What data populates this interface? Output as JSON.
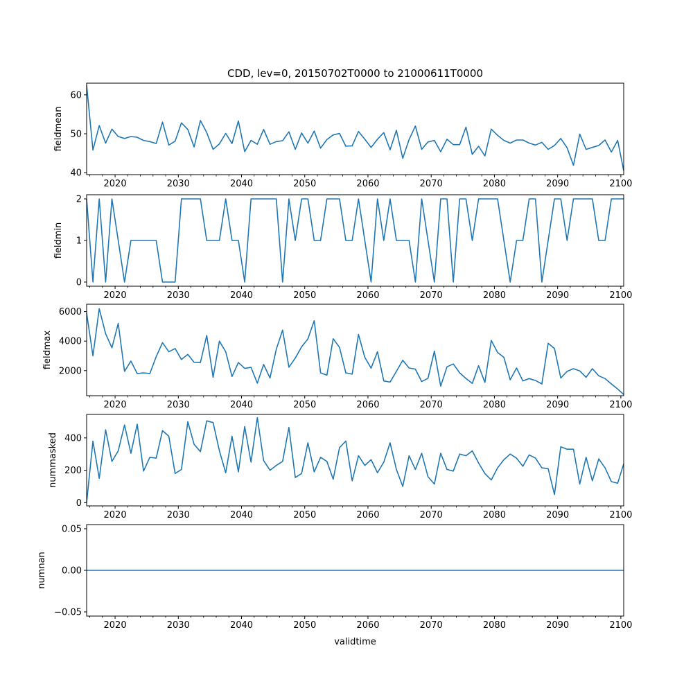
{
  "chart_data": {
    "type": "line",
    "title": "CDD, lev=0, 20150702T0000 to 21000611T0000",
    "xlabel": "validtime",
    "xlim": [
      2015.5,
      2100.45
    ],
    "x_ticks": [
      2020,
      2030,
      2040,
      2050,
      2060,
      2070,
      2080,
      2090,
      2100
    ],
    "x_tick_labels": [
      "2020",
      "2030",
      "2040",
      "2050",
      "2060",
      "2070",
      "2080",
      "2090",
      "2100"
    ],
    "line_color": "#1f77b4",
    "grid": false,
    "x": [
      2015.5,
      2016.5,
      2017.5,
      2018.5,
      2019.5,
      2020.5,
      2021.5,
      2022.5,
      2023.5,
      2024.5,
      2025.5,
      2026.5,
      2027.5,
      2028.5,
      2029.5,
      2030.5,
      2031.5,
      2032.5,
      2033.5,
      2034.5,
      2035.5,
      2036.5,
      2037.5,
      2038.5,
      2039.5,
      2040.5,
      2041.5,
      2042.5,
      2043.5,
      2044.5,
      2045.5,
      2046.5,
      2047.5,
      2048.5,
      2049.5,
      2050.5,
      2051.5,
      2052.5,
      2053.5,
      2054.5,
      2055.5,
      2056.5,
      2057.5,
      2058.5,
      2059.5,
      2060.5,
      2061.5,
      2062.5,
      2063.5,
      2064.5,
      2065.5,
      2066.5,
      2067.5,
      2068.5,
      2069.5,
      2070.5,
      2071.5,
      2072.5,
      2073.5,
      2074.5,
      2075.5,
      2076.5,
      2077.5,
      2078.5,
      2079.5,
      2080.5,
      2081.5,
      2082.5,
      2083.5,
      2084.5,
      2085.5,
      2086.5,
      2087.5,
      2088.5,
      2089.5,
      2090.5,
      2091.5,
      2092.5,
      2093.5,
      2094.5,
      2095.5,
      2096.5,
      2097.5,
      2098.5,
      2099.5,
      2100.45
    ],
    "subplots": [
      {
        "ylabel": "fieldmean",
        "ylim": [
          39.5,
          63
        ],
        "y_ticks": [
          40,
          50,
          60
        ],
        "y_tick_labels": [
          "40",
          "50",
          "60"
        ],
        "values": [
          62.5,
          45.8,
          52.1,
          47.6,
          51.2,
          49.3,
          48.8,
          49.3,
          49.1,
          48.3,
          48.0,
          47.5,
          53.0,
          47.1,
          48.1,
          52.8,
          51.1,
          46.6,
          53.4,
          50.3,
          46.0,
          47.4,
          50.1,
          47.5,
          53.3,
          45.4,
          48.3,
          47.3,
          51.1,
          47.3,
          48.0,
          48.2,
          50.5,
          46.0,
          50.2,
          47.6,
          50.7,
          46.3,
          48.5,
          49.7,
          50.1,
          46.8,
          46.9,
          50.6,
          48.6,
          46.5,
          48.6,
          50.3,
          45.9,
          50.9,
          43.7,
          48.5,
          52.0,
          46.0,
          47.9,
          48.3,
          45.4,
          48.6,
          47.2,
          47.2,
          51.7,
          44.7,
          46.8,
          44.3,
          51.2,
          49.6,
          48.3,
          47.6,
          48.4,
          48.4,
          47.6,
          47.1,
          47.8,
          46.0,
          47.0,
          48.8,
          46.4,
          41.9,
          49.9,
          46.0,
          46.5,
          47.0,
          48.4,
          45.3,
          48.3,
          40.5
        ]
      },
      {
        "ylabel": "fieldmin",
        "ylim": [
          -0.1,
          2.1
        ],
        "y_ticks": [
          0,
          1,
          2
        ],
        "y_tick_labels": [
          "0",
          "1",
          "2"
        ],
        "values": [
          2,
          0,
          2,
          0,
          2,
          1,
          0,
          1,
          1,
          1,
          1,
          1,
          0,
          0,
          0,
          2,
          2,
          2,
          2,
          1,
          1,
          1,
          2,
          1,
          1,
          0,
          2,
          2,
          2,
          2,
          2,
          0,
          2,
          1,
          2,
          2,
          1,
          1,
          2,
          2,
          2,
          1,
          1,
          2,
          1,
          0,
          2,
          1,
          2,
          1,
          1,
          1,
          0,
          2,
          1,
          0,
          2,
          2,
          0,
          2,
          2,
          1,
          2,
          2,
          2,
          2,
          1,
          0,
          1,
          1,
          2,
          2,
          0,
          1,
          2,
          2,
          1,
          2,
          2,
          2,
          2,
          1,
          1,
          2,
          2,
          2
        ]
      },
      {
        "ylabel": "fieldmax",
        "ylim": [
          300,
          6500
        ],
        "y_ticks": [
          2000,
          4000,
          6000
        ],
        "y_tick_labels": [
          "2000",
          "4000",
          "6000"
        ],
        "values": [
          5900,
          3000,
          6200,
          4500,
          3550,
          5200,
          1950,
          2650,
          1800,
          1850,
          1800,
          2950,
          3900,
          3280,
          3500,
          2750,
          3100,
          2570,
          2550,
          4380,
          1550,
          4000,
          3280,
          1600,
          2550,
          2150,
          2220,
          1150,
          2420,
          1500,
          3450,
          4750,
          2230,
          2850,
          3610,
          4150,
          5380,
          1850,
          1690,
          4160,
          3580,
          1850,
          1760,
          4450,
          2900,
          2170,
          3280,
          1300,
          1220,
          1950,
          2700,
          2180,
          2100,
          1260,
          1480,
          3320,
          950,
          2260,
          2450,
          1850,
          1470,
          1130,
          2330,
          1200,
          4050,
          3230,
          2900,
          1380,
          2180,
          1300,
          1460,
          1330,
          1100,
          3850,
          3500,
          1500,
          1950,
          2130,
          1980,
          1550,
          2130,
          1650,
          1460,
          1100,
          750,
          380
        ]
      },
      {
        "ylabel": "nummasked",
        "ylim": [
          -20,
          545
        ],
        "y_ticks": [
          0,
          200,
          400
        ],
        "y_tick_labels": [
          "0",
          "200",
          "400"
        ],
        "values": [
          0,
          380,
          150,
          450,
          255,
          320,
          480,
          305,
          485,
          195,
          280,
          275,
          445,
          410,
          180,
          205,
          500,
          360,
          315,
          505,
          495,
          320,
          185,
          410,
          190,
          470,
          250,
          525,
          260,
          200,
          230,
          255,
          465,
          155,
          180,
          370,
          190,
          280,
          255,
          145,
          340,
          380,
          135,
          290,
          230,
          265,
          185,
          250,
          370,
          205,
          100,
          290,
          205,
          305,
          160,
          115,
          305,
          205,
          195,
          300,
          290,
          320,
          245,
          180,
          140,
          215,
          265,
          300,
          275,
          225,
          295,
          275,
          215,
          210,
          50,
          345,
          330,
          330,
          115,
          280,
          135,
          270,
          215,
          130,
          120,
          240
        ]
      },
      {
        "ylabel": "numnan",
        "ylim": [
          -0.055,
          0.055
        ],
        "y_ticks": [
          -0.05,
          0.0,
          0.05
        ],
        "y_tick_labels": [
          "−0.05",
          "0.00",
          "0.05"
        ],
        "constant_value": 0.0
      }
    ]
  }
}
